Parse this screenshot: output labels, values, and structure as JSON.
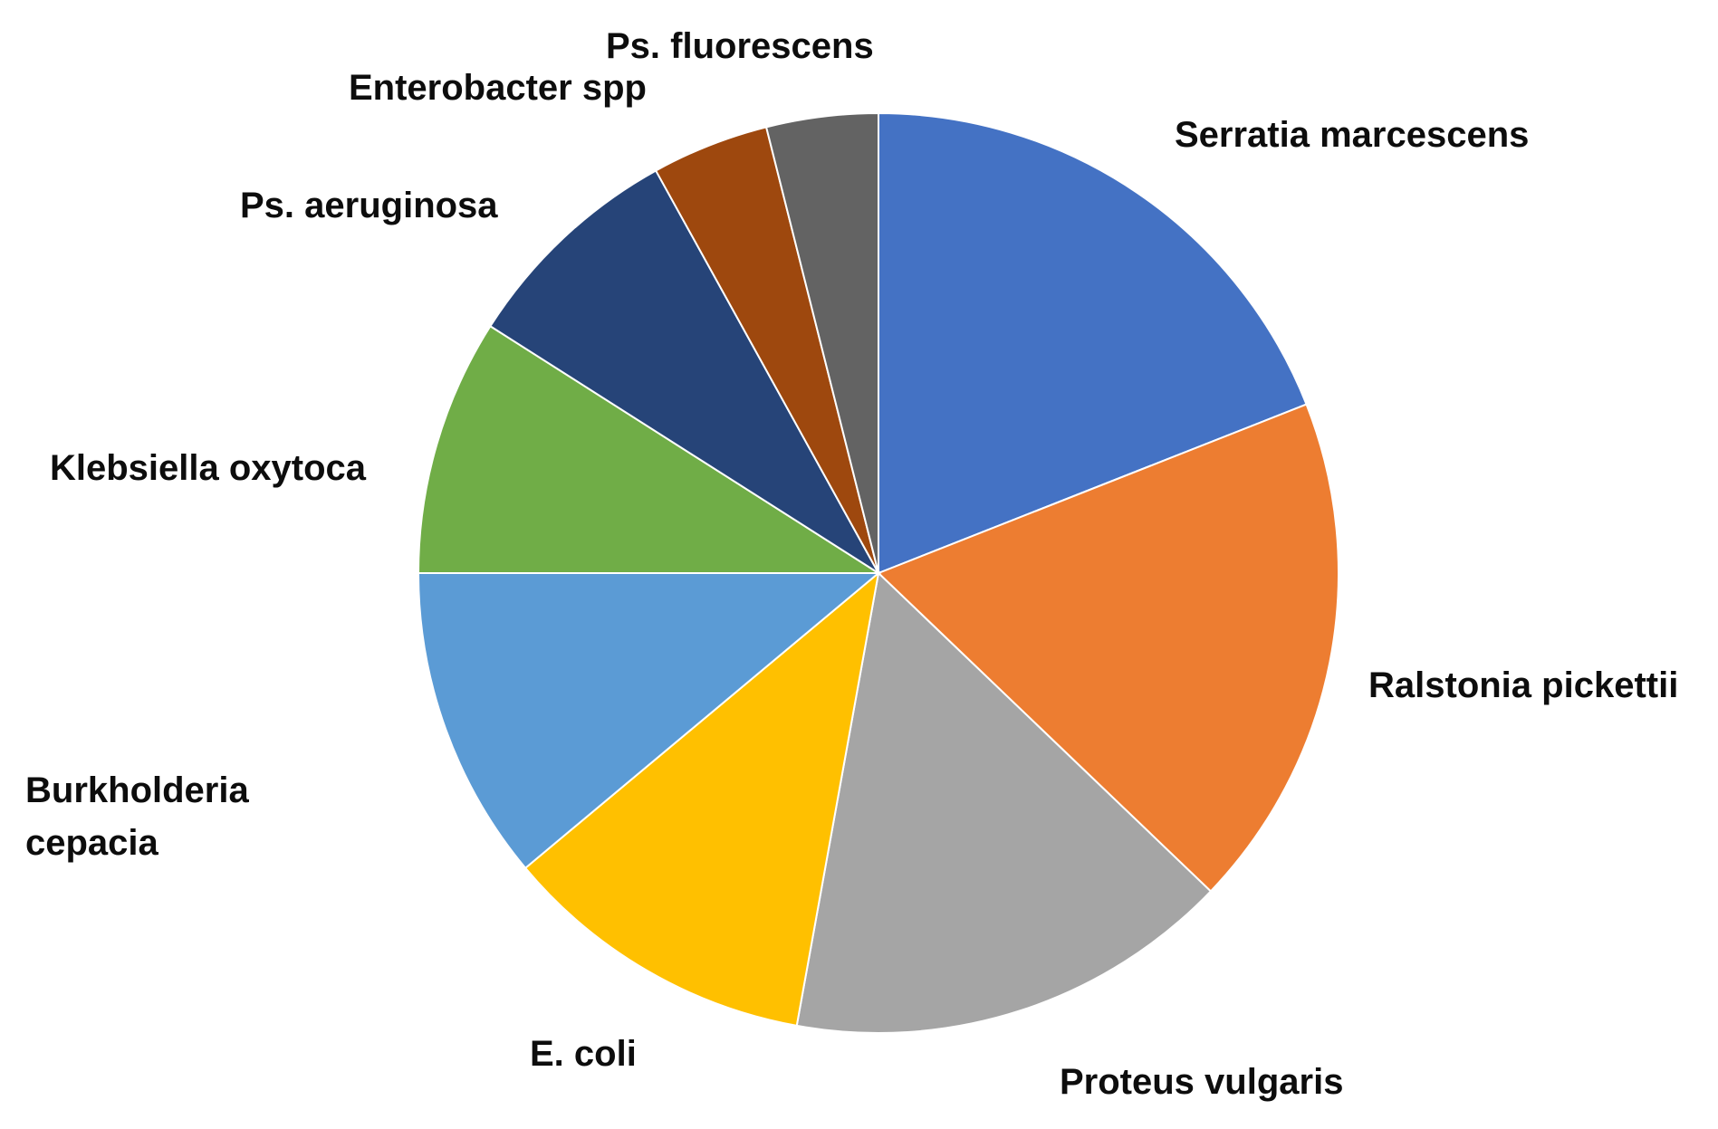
{
  "chart_data": {
    "type": "pie",
    "start_angle_deg": 0,
    "direction": "clockwise",
    "slices": [
      {
        "label": "Serratia marcescens",
        "value": 19.4,
        "color": "#4472C4"
      },
      {
        "label": "Ralstonia pickettii",
        "value": 18.5,
        "color": "#ED7D31"
      },
      {
        "label": "Proteus vulgaris",
        "value": 16.0,
        "color": "#A5A5A5"
      },
      {
        "label": "E. coli",
        "value": 11.3,
        "color": "#FFC000"
      },
      {
        "label": "Burkholderia cepacia",
        "value": 11.3,
        "color": "#5B9BD5"
      },
      {
        "label": "Klebsiella oxytoca",
        "value": 9.2,
        "color": "#70AD47"
      },
      {
        "label": "Ps. aeruginosa",
        "value": 8.1,
        "color": "#264478"
      },
      {
        "label": "Enterobacter spp",
        "value": 4.2,
        "color": "#9E480E"
      },
      {
        "label": "Ps. fluorescens",
        "value": 4.0,
        "color": "#636363"
      }
    ]
  }
}
